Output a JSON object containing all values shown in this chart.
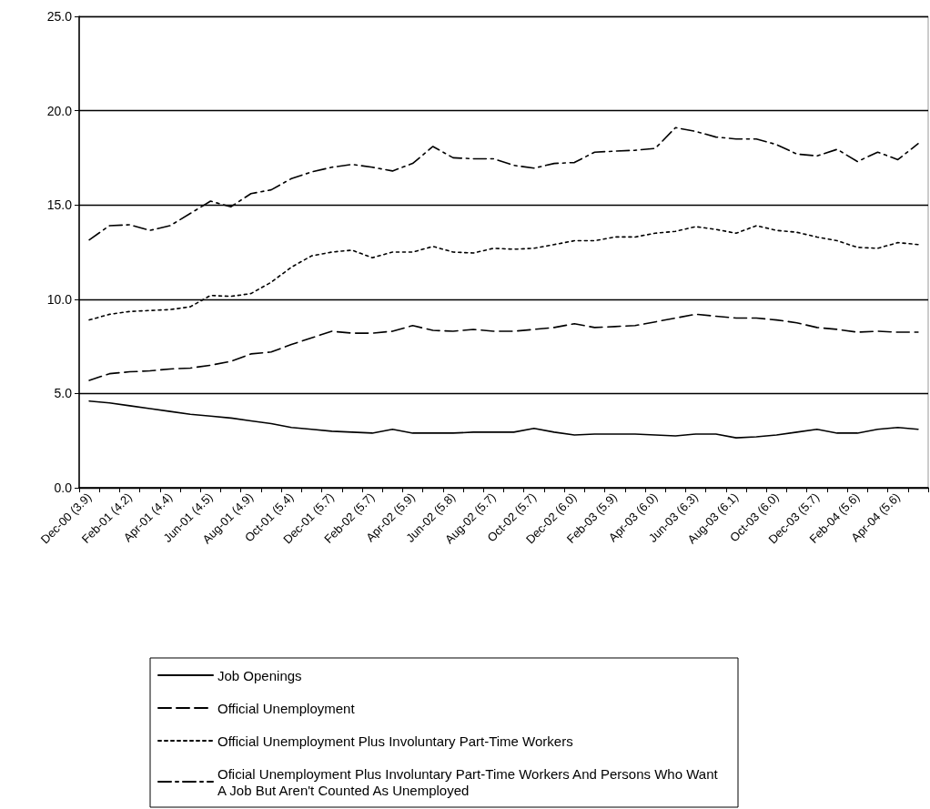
{
  "chart_data": {
    "type": "line",
    "categories": [
      "Dec-00 (3.9)",
      null,
      "Feb-01 (4.2)",
      null,
      "Apr-01 (4.4)",
      null,
      "Jun-01 (4.5)",
      null,
      "Aug-01 (4.9)",
      null,
      "Oct-01 (5.4)",
      null,
      "Dec-01 (5.7)",
      null,
      "Feb-02 (5.7)",
      null,
      "Apr-02 (5.9)",
      null,
      "Jun-02 (5.8)",
      null,
      "Aug-02 (5.7)",
      null,
      "Oct-02 (5.7)",
      null,
      "Dec-02 (6.0)",
      null,
      "Feb-03 (5.9)",
      null,
      "Apr-03 (6.0)",
      null,
      "Jun-03 (6.3)",
      null,
      "Aug-03 (6.1)",
      null,
      "Oct-03 (6.0)",
      null,
      "Dec-03 (5.7)",
      null,
      "Feb-04 (5.6)",
      null,
      "Apr-04 (5.6)",
      null
    ],
    "series": [
      {
        "name": "Job Openings",
        "color": "#000000",
        "line_style": "solid",
        "values": [
          4.6,
          4.5,
          4.35,
          4.2,
          4.05,
          3.9,
          3.8,
          3.7,
          3.55,
          3.4,
          3.2,
          3.1,
          3.0,
          2.95,
          2.9,
          3.1,
          2.9,
          2.9,
          2.9,
          2.95,
          2.95,
          2.95,
          3.15,
          2.95,
          2.8,
          2.85,
          2.85,
          2.85,
          2.8,
          2.75,
          2.85,
          2.85,
          2.65,
          2.7,
          2.8,
          2.95,
          3.1,
          2.9,
          2.9,
          3.1,
          3.2,
          3.1
        ]
      },
      {
        "name": "Official Unemployment",
        "color": "#000000",
        "line_style": "dashed",
        "values": [
          5.7,
          6.05,
          6.15,
          6.2,
          6.3,
          6.35,
          6.5,
          6.7,
          7.1,
          7.2,
          7.6,
          7.95,
          8.3,
          8.2,
          8.2,
          8.3,
          8.6,
          8.35,
          8.3,
          8.4,
          8.3,
          8.3,
          8.4,
          8.5,
          8.7,
          8.5,
          8.55,
          8.6,
          8.8,
          9.0,
          9.2,
          9.1,
          9.0,
          9.0,
          8.9,
          8.75,
          8.5,
          8.4,
          8.25,
          8.3,
          8.25,
          8.25
        ]
      },
      {
        "name": "Official Unemployment Plus Involuntary Part-Time Workers",
        "color": "#000000",
        "line_style": "dotted",
        "values": [
          8.9,
          9.2,
          9.35,
          9.4,
          9.45,
          9.6,
          10.2,
          10.15,
          10.3,
          10.9,
          11.7,
          12.3,
          12.5,
          12.6,
          12.2,
          12.5,
          12.5,
          12.8,
          12.5,
          12.45,
          12.7,
          12.65,
          12.7,
          12.9,
          13.1,
          13.1,
          13.3,
          13.3,
          13.5,
          13.6,
          13.85,
          13.7,
          13.5,
          13.9,
          13.65,
          13.55,
          13.3,
          13.1,
          12.75,
          12.7,
          13.0,
          12.9
        ]
      },
      {
        "name": "Oficial Unemployment Plus Involuntary Part-Time Workers And Persons Who Want A Job But Aren't Counted As Unemployed",
        "color": "#000000",
        "line_style": "dashdot",
        "values": [
          13.15,
          13.9,
          13.95,
          13.65,
          13.9,
          14.55,
          15.2,
          14.9,
          15.6,
          15.8,
          16.4,
          16.75,
          17.0,
          17.15,
          17.0,
          16.8,
          17.2,
          18.1,
          17.5,
          17.45,
          17.45,
          17.1,
          16.95,
          17.2,
          17.25,
          17.8,
          17.85,
          17.9,
          18.0,
          19.1,
          18.9,
          18.6,
          18.5,
          18.5,
          18.2,
          17.7,
          17.6,
          17.95,
          17.3,
          17.8,
          17.4,
          18.25
        ]
      }
    ],
    "ylim": [
      0,
      25
    ],
    "yticks": [
      {
        "value": 0,
        "label": "0.0"
      },
      {
        "value": 5,
        "label": "5.0"
      },
      {
        "value": 10,
        "label": "10.0"
      },
      {
        "value": 15,
        "label": "15.0"
      },
      {
        "value": 20,
        "label": "20.0"
      },
      {
        "value": 25,
        "label": "25.0"
      }
    ],
    "grid": "y",
    "legend": "bottom",
    "marker": "none"
  }
}
